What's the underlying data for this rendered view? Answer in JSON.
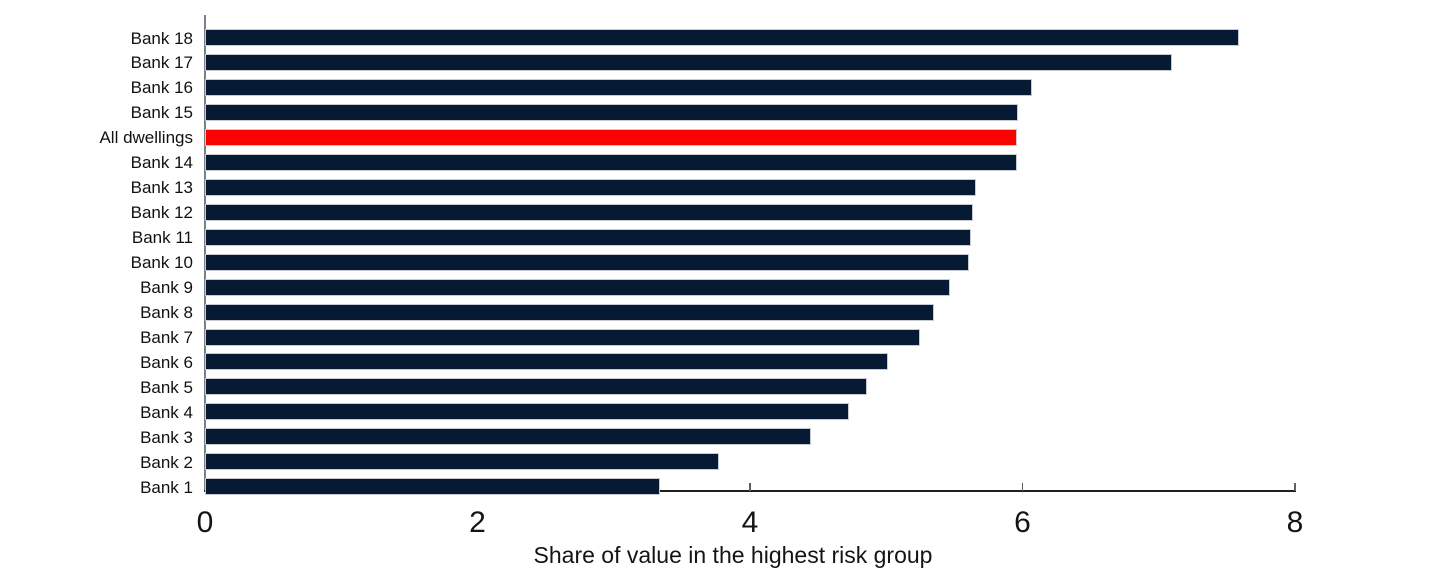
{
  "chart_data": {
    "type": "bar",
    "orientation": "horizontal",
    "title": "",
    "xlabel": "Share of value in the highest risk group",
    "ylabel": "",
    "xlim": [
      0,
      8
    ],
    "xticks": [
      0,
      2,
      4,
      6,
      8
    ],
    "grid": false,
    "legend": false,
    "categories": [
      "Bank 18",
      "Bank 17",
      "Bank 16",
      "Bank 15",
      "All dwellings",
      "Bank 14",
      "Bank 13",
      "Bank 12",
      "Bank 11",
      "Bank 10",
      "Bank 9",
      "Bank 8",
      "Bank 7",
      "Bank 6",
      "Bank 5",
      "Bank 4",
      "Bank 3",
      "Bank 2",
      "Bank 1"
    ],
    "values": [
      7.59,
      7.1,
      6.07,
      5.97,
      5.96,
      5.96,
      5.66,
      5.64,
      5.62,
      5.61,
      5.47,
      5.35,
      5.25,
      5.01,
      4.86,
      4.73,
      4.45,
      3.77,
      3.34
    ],
    "highlight_category": "All dwellings"
  },
  "colors": {
    "bar": "#071a33",
    "highlight": "#fb0300",
    "bar_border": "#c7c9d3",
    "axis": "#1f1f1f",
    "text": "#141414"
  }
}
